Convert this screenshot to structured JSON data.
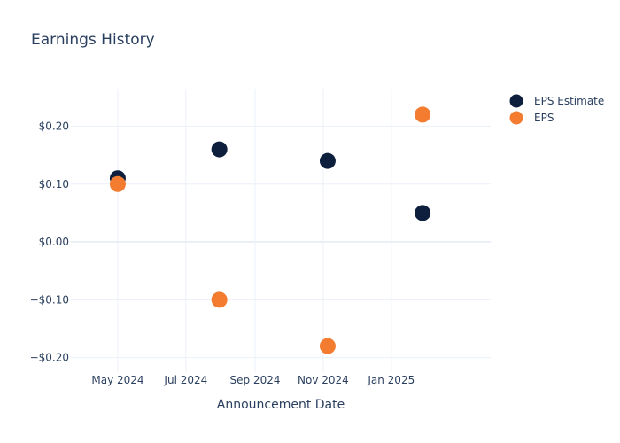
{
  "chart_data": {
    "type": "scatter",
    "title": "Earnings History",
    "xlabel": "Announcement Date",
    "ylabel": "",
    "x_type": "date",
    "xlim": [
      "2024-03-20",
      "2025-03-31"
    ],
    "ylim": [
      -0.225,
      0.265
    ],
    "x_ticks": [
      {
        "value": "2024-05-01",
        "label": "May 2024"
      },
      {
        "value": "2024-07-01",
        "label": "Jul 2024"
      },
      {
        "value": "2024-09-01",
        "label": "Sep 2024"
      },
      {
        "value": "2024-11-01",
        "label": "Nov 2024"
      },
      {
        "value": "2025-01-01",
        "label": "Jan 2025"
      }
    ],
    "y_ticks": [
      {
        "value": 0.2,
        "label": "$0.20"
      },
      {
        "value": 0.1,
        "label": "$0.10"
      },
      {
        "value": 0,
        "label": "$0.00"
      },
      {
        "value": -0.1,
        "label": "−$0.10"
      },
      {
        "value": -0.2,
        "label": "−$0.20"
      }
    ],
    "grid": true,
    "legend_position": "top-right",
    "series": [
      {
        "name": "EPS Estimate",
        "color": "#0d1f3c",
        "points": [
          {
            "x": "2024-05-01",
            "y": 0.11
          },
          {
            "x": "2024-07-31",
            "y": 0.16
          },
          {
            "x": "2024-11-05",
            "y": 0.14
          },
          {
            "x": "2025-01-29",
            "y": 0.05
          }
        ]
      },
      {
        "name": "EPS",
        "color": "#f47c30",
        "points": [
          {
            "x": "2024-05-01",
            "y": 0.1
          },
          {
            "x": "2024-07-31",
            "y": -0.1
          },
          {
            "x": "2024-11-05",
            "y": -0.18
          },
          {
            "x": "2025-01-29",
            "y": 0.22
          }
        ]
      }
    ]
  }
}
